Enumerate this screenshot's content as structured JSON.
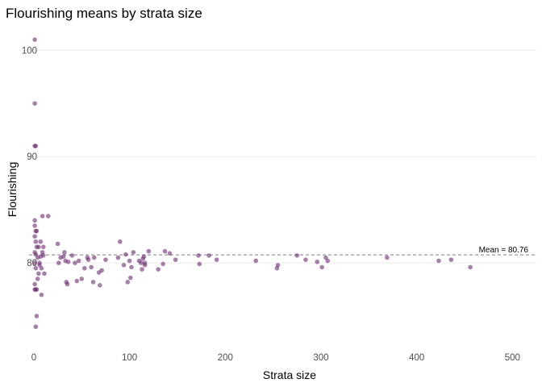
{
  "chart_data": {
    "type": "scatter",
    "title": "Flourishing means by strata size",
    "xlabel": "Strata size",
    "ylabel": "Flourishing",
    "xlim": [
      -5,
      525
    ],
    "ylim": [
      72.5,
      102
    ],
    "xticks": [
      0,
      100,
      200,
      300,
      400,
      500
    ],
    "yticks": [
      80,
      90,
      100
    ],
    "grid": true,
    "point_color": "#6a2c70",
    "mean_line": {
      "y": 80.76,
      "label": "Mean = 80.76",
      "color": "#7f7f7f"
    },
    "points": [
      [
        1,
        101.0
      ],
      [
        1,
        95.0
      ],
      [
        1,
        91.0
      ],
      [
        2,
        91.0
      ],
      [
        1,
        84.0
      ],
      [
        1,
        83.5
      ],
      [
        2,
        83.0
      ],
      [
        3,
        83.0
      ],
      [
        1,
        82.5
      ],
      [
        2,
        82.0
      ],
      [
        3,
        81.5
      ],
      [
        1,
        81.0
      ],
      [
        2,
        80.8
      ],
      [
        4,
        80.5
      ],
      [
        1,
        80.0
      ],
      [
        2,
        79.5
      ],
      [
        1,
        78.0
      ],
      [
        2,
        77.5
      ],
      [
        3,
        77.5
      ],
      [
        1,
        77.5
      ],
      [
        2,
        74.0
      ],
      [
        3,
        75.0
      ],
      [
        4,
        78.5
      ],
      [
        5,
        79.0
      ],
      [
        5,
        81.5
      ],
      [
        6,
        80.0
      ],
      [
        6,
        79.8
      ],
      [
        7,
        82.0
      ],
      [
        7,
        80.6
      ],
      [
        8,
        77.0
      ],
      [
        8,
        79.5
      ],
      [
        9,
        81.0
      ],
      [
        9,
        84.4
      ],
      [
        10,
        80.7
      ],
      [
        10,
        81.5
      ],
      [
        11,
        79.0
      ],
      [
        15,
        84.4
      ],
      [
        25,
        81.8
      ],
      [
        26,
        80.0
      ],
      [
        28,
        80.5
      ],
      [
        31,
        80.6
      ],
      [
        32,
        81.0
      ],
      [
        33,
        80.2
      ],
      [
        34,
        78.2
      ],
      [
        35,
        78.0
      ],
      [
        36,
        80.1
      ],
      [
        40,
        80.7
      ],
      [
        43,
        80.0
      ],
      [
        45,
        78.3
      ],
      [
        47,
        80.2
      ],
      [
        50,
        78.5
      ],
      [
        53,
        79.5
      ],
      [
        56,
        80.5
      ],
      [
        57,
        80.3
      ],
      [
        60,
        79.6
      ],
      [
        62,
        78.2
      ],
      [
        63,
        80.5
      ],
      [
        68,
        79.1
      ],
      [
        69,
        77.9
      ],
      [
        71,
        79.3
      ],
      [
        75,
        80.3
      ],
      [
        88,
        80.5
      ],
      [
        90,
        82.0
      ],
      [
        94,
        79.8
      ],
      [
        96,
        80.8
      ],
      [
        98,
        78.2
      ],
      [
        100,
        80.2
      ],
      [
        101,
        78.6
      ],
      [
        102,
        79.6
      ],
      [
        104,
        81.0
      ],
      [
        110,
        80.2
      ],
      [
        112,
        80.0
      ],
      [
        113,
        79.4
      ],
      [
        114,
        80.4
      ],
      [
        115,
        80.6
      ],
      [
        116,
        80.0
      ],
      [
        116,
        79.8
      ],
      [
        120,
        81.1
      ],
      [
        130,
        79.4
      ],
      [
        135,
        79.9
      ],
      [
        137,
        81.1
      ],
      [
        142,
        80.9
      ],
      [
        148,
        80.3
      ],
      [
        172,
        80.7
      ],
      [
        173,
        79.9
      ],
      [
        183,
        80.7
      ],
      [
        191,
        80.3
      ],
      [
        232,
        80.2
      ],
      [
        254,
        79.5
      ],
      [
        255,
        79.8
      ],
      [
        275,
        80.7
      ],
      [
        284,
        80.3
      ],
      [
        296,
        80.1
      ],
      [
        301,
        79.6
      ],
      [
        305,
        80.5
      ],
      [
        307,
        80.2
      ],
      [
        369,
        80.5
      ],
      [
        423,
        80.2
      ],
      [
        436,
        80.3
      ],
      [
        456,
        79.6
      ]
    ]
  }
}
